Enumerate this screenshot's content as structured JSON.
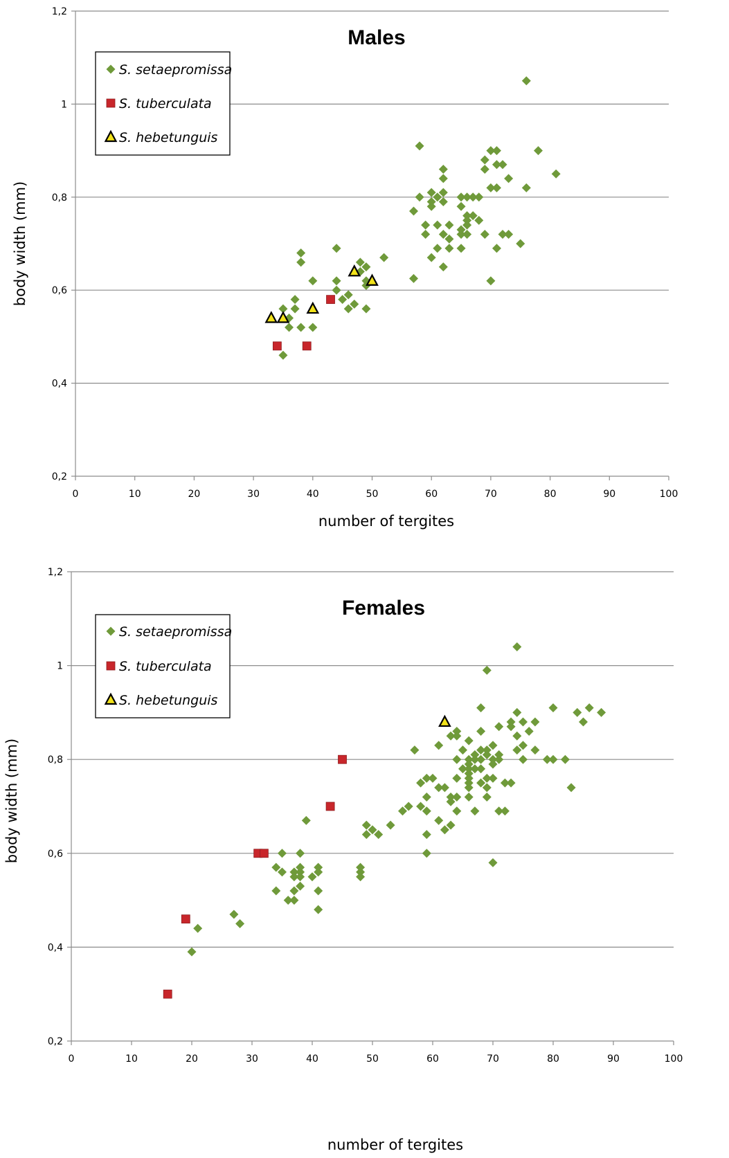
{
  "chart_data": [
    {
      "type": "scatter",
      "title": "Males",
      "xlabel": "number of tergites",
      "ylabel": "body width (mm)",
      "xlim": [
        0,
        100
      ],
      "ylim": [
        0.2,
        1.2
      ],
      "xticks": [
        "0",
        "10",
        "20",
        "30",
        "40",
        "50",
        "60",
        "70",
        "80",
        "90",
        "100"
      ],
      "yticks": [
        "0,2",
        "0,4",
        "0,6",
        "0,8",
        "1",
        "1,2"
      ],
      "grid": "horizontal",
      "legend_position": "top-left",
      "series": [
        {
          "name": "S. setaepromissa",
          "marker": "diamond",
          "color": "#6f9a3a",
          "points": [
            [
              35,
              0.46
            ],
            [
              35,
              0.56
            ],
            [
              36,
              0.52
            ],
            [
              36,
              0.54
            ],
            [
              37,
              0.58
            ],
            [
              37,
              0.56
            ],
            [
              38,
              0.68
            ],
            [
              38,
              0.66
            ],
            [
              38,
              0.52
            ],
            [
              40,
              0.62
            ],
            [
              40,
              0.52
            ],
            [
              44,
              0.69
            ],
            [
              44,
              0.62
            ],
            [
              44,
              0.6
            ],
            [
              45,
              0.58
            ],
            [
              46,
              0.59
            ],
            [
              46,
              0.56
            ],
            [
              47,
              0.57
            ],
            [
              48,
              0.66
            ],
            [
              48,
              0.64
            ],
            [
              49,
              0.65
            ],
            [
              49,
              0.62
            ],
            [
              49,
              0.61
            ],
            [
              49,
              0.56
            ],
            [
              52,
              0.67
            ],
            [
              57,
              0.77
            ],
            [
              57,
              0.625
            ],
            [
              58,
              0.91
            ],
            [
              58,
              0.8
            ],
            [
              59,
              0.74
            ],
            [
              59,
              0.72
            ],
            [
              60,
              0.81
            ],
            [
              60,
              0.79
            ],
            [
              60,
              0.78
            ],
            [
              60,
              0.67
            ],
            [
              61,
              0.8
            ],
            [
              61,
              0.74
            ],
            [
              61,
              0.69
            ],
            [
              62,
              0.86
            ],
            [
              62,
              0.84
            ],
            [
              62,
              0.81
            ],
            [
              62,
              0.79
            ],
            [
              62,
              0.72
            ],
            [
              62,
              0.65
            ],
            [
              63,
              0.74
            ],
            [
              63,
              0.71
            ],
            [
              63,
              0.69
            ],
            [
              65,
              0.8
            ],
            [
              65,
              0.78
            ],
            [
              65,
              0.73
            ],
            [
              65,
              0.72
            ],
            [
              65,
              0.69
            ],
            [
              66,
              0.8
            ],
            [
              66,
              0.76
            ],
            [
              66,
              0.75
            ],
            [
              66,
              0.74
            ],
            [
              66,
              0.72
            ],
            [
              67,
              0.8
            ],
            [
              67,
              0.76
            ],
            [
              68,
              0.8
            ],
            [
              68,
              0.75
            ],
            [
              69,
              0.88
            ],
            [
              69,
              0.86
            ],
            [
              69,
              0.72
            ],
            [
              70,
              0.9
            ],
            [
              70,
              0.82
            ],
            [
              70,
              0.62
            ],
            [
              71,
              0.9
            ],
            [
              71,
              0.87
            ],
            [
              71,
              0.82
            ],
            [
              71,
              0.69
            ],
            [
              72,
              0.87
            ],
            [
              72,
              0.72
            ],
            [
              73,
              0.84
            ],
            [
              73,
              0.72
            ],
            [
              75,
              0.7
            ],
            [
              76,
              1.05
            ],
            [
              76,
              0.82
            ],
            [
              78,
              0.9
            ],
            [
              81,
              0.85
            ]
          ]
        },
        {
          "name": "S. tuberculata",
          "marker": "square",
          "color": "#c8262b",
          "points": [
            [
              34,
              0.48
            ],
            [
              39,
              0.48
            ],
            [
              43,
              0.58
            ]
          ]
        },
        {
          "name": "S. hebetunguis",
          "marker": "triangle",
          "color": "#f2e21a",
          "points": [
            [
              33,
              0.54
            ],
            [
              35,
              0.54
            ],
            [
              40,
              0.56
            ],
            [
              47,
              0.64
            ],
            [
              50,
              0.62
            ]
          ]
        }
      ]
    },
    {
      "type": "scatter",
      "title": "Females",
      "xlabel": "number of tergites",
      "ylabel": "body width (mm)",
      "xlim": [
        0,
        100
      ],
      "ylim": [
        0.2,
        1.2
      ],
      "xticks": [
        "0",
        "10",
        "20",
        "30",
        "40",
        "50",
        "60",
        "70",
        "80",
        "90",
        "100"
      ],
      "yticks": [
        "0,2",
        "0,4",
        "0,6",
        "0,8",
        "1",
        "1,2"
      ],
      "grid": "horizontal",
      "legend_position": "top-left",
      "series": [
        {
          "name": "S. setaepromissa",
          "marker": "diamond",
          "color": "#6f9a3a",
          "points": [
            [
              20,
              0.39
            ],
            [
              21,
              0.44
            ],
            [
              27,
              0.47
            ],
            [
              28,
              0.45
            ],
            [
              34,
              0.57
            ],
            [
              34,
              0.52
            ],
            [
              35,
              0.6
            ],
            [
              35,
              0.56
            ],
            [
              36,
              0.5
            ],
            [
              37,
              0.56
            ],
            [
              37,
              0.55
            ],
            [
              37,
              0.52
            ],
            [
              37,
              0.5
            ],
            [
              38,
              0.6
            ],
            [
              38,
              0.57
            ],
            [
              38,
              0.56
            ],
            [
              38,
              0.55
            ],
            [
              38,
              0.53
            ],
            [
              39,
              0.67
            ],
            [
              40,
              0.55
            ],
            [
              41,
              0.57
            ],
            [
              41,
              0.56
            ],
            [
              41,
              0.52
            ],
            [
              41,
              0.48
            ],
            [
              48,
              0.57
            ],
            [
              48,
              0.56
            ],
            [
              48,
              0.55
            ],
            [
              49,
              0.66
            ],
            [
              49,
              0.64
            ],
            [
              50,
              0.65
            ],
            [
              51,
              0.64
            ],
            [
              53,
              0.66
            ],
            [
              55,
              0.69
            ],
            [
              56,
              0.7
            ],
            [
              57,
              0.82
            ],
            [
              58,
              0.75
            ],
            [
              58,
              0.7
            ],
            [
              59,
              0.76
            ],
            [
              59,
              0.72
            ],
            [
              59,
              0.69
            ],
            [
              59,
              0.64
            ],
            [
              59,
              0.6
            ],
            [
              60,
              0.76
            ],
            [
              61,
              0.83
            ],
            [
              61,
              0.74
            ],
            [
              61,
              0.67
            ],
            [
              62,
              0.74
            ],
            [
              62,
              0.65
            ],
            [
              63,
              0.85
            ],
            [
              63,
              0.72
            ],
            [
              63,
              0.71
            ],
            [
              63,
              0.66
            ],
            [
              64,
              0.86
            ],
            [
              64,
              0.85
            ],
            [
              64,
              0.8
            ],
            [
              64,
              0.76
            ],
            [
              64,
              0.72
            ],
            [
              64,
              0.69
            ],
            [
              65,
              0.82
            ],
            [
              65,
              0.78
            ],
            [
              66,
              0.84
            ],
            [
              66,
              0.8
            ],
            [
              66,
              0.79
            ],
            [
              66,
              0.78
            ],
            [
              66,
              0.77
            ],
            [
              66,
              0.76
            ],
            [
              66,
              0.75
            ],
            [
              66,
              0.74
            ],
            [
              66,
              0.72
            ],
            [
              67,
              0.81
            ],
            [
              67,
              0.8
            ],
            [
              67,
              0.78
            ],
            [
              67,
              0.69
            ],
            [
              68,
              0.91
            ],
            [
              68,
              0.86
            ],
            [
              68,
              0.82
            ],
            [
              68,
              0.8
            ],
            [
              68,
              0.78
            ],
            [
              68,
              0.75
            ],
            [
              69,
              0.99
            ],
            [
              69,
              0.82
            ],
            [
              69,
              0.81
            ],
            [
              69,
              0.76
            ],
            [
              69,
              0.74
            ],
            [
              69,
              0.72
            ],
            [
              70,
              0.83
            ],
            [
              70,
              0.8
            ],
            [
              70,
              0.79
            ],
            [
              70,
              0.76
            ],
            [
              70,
              0.58
            ],
            [
              71,
              0.87
            ],
            [
              71,
              0.81
            ],
            [
              71,
              0.8
            ],
            [
              71,
              0.69
            ],
            [
              72,
              0.75
            ],
            [
              72,
              0.69
            ],
            [
              73,
              0.88
            ],
            [
              73,
              0.87
            ],
            [
              73,
              0.75
            ],
            [
              74,
              1.04
            ],
            [
              74,
              0.9
            ],
            [
              74,
              0.85
            ],
            [
              74,
              0.82
            ],
            [
              75,
              0.88
            ],
            [
              75,
              0.83
            ],
            [
              75,
              0.8
            ],
            [
              76,
              0.86
            ],
            [
              77,
              0.88
            ],
            [
              77,
              0.82
            ],
            [
              79,
              0.8
            ],
            [
              80,
              0.91
            ],
            [
              80,
              0.8
            ],
            [
              82,
              0.8
            ],
            [
              83,
              0.74
            ],
            [
              84,
              0.9
            ],
            [
              85,
              0.88
            ],
            [
              86,
              0.91
            ],
            [
              88,
              0.9
            ]
          ]
        },
        {
          "name": "S. tuberculata",
          "marker": "square",
          "color": "#c8262b",
          "points": [
            [
              16,
              0.3
            ],
            [
              19,
              0.46
            ],
            [
              31,
              0.6
            ],
            [
              32,
              0.6
            ],
            [
              43,
              0.7
            ],
            [
              45,
              0.8
            ]
          ]
        },
        {
          "name": "S. hebetunguis",
          "marker": "triangle",
          "color": "#f2e21a",
          "points": [
            [
              62,
              0.88
            ]
          ]
        }
      ]
    }
  ]
}
